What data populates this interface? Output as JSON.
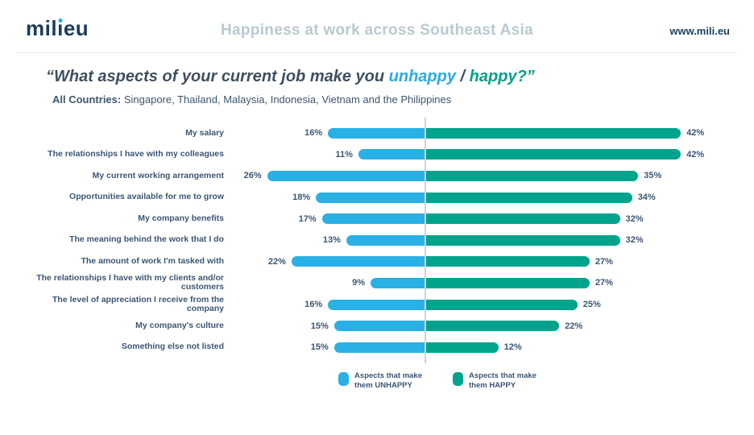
{
  "header": {
    "logo": {
      "full": "milieu",
      "part1": "mil",
      "part2_dotless": "ı",
      "part3": "eu",
      "dot_color": "#29abe2"
    },
    "title": "Happiness at work across Southeast Asia",
    "website": "www.mili.eu"
  },
  "question": {
    "open_quote": "“",
    "prefix": "What aspects of your current job make you ",
    "unhappy_word": "unhappy",
    "separator": " / ",
    "happy_word": "happy",
    "suffix": "?”"
  },
  "subtitle": {
    "bold": "All Countries:",
    "rest": " Singapore, Thailand, Malaysia, Indonesia, Vietnam and the Philippines"
  },
  "chart_data": {
    "type": "bar",
    "variant": "diverging-horizontal",
    "title": "What aspects of your current job make you unhappy / happy?",
    "value_suffix": "%",
    "xlim": [
      -30,
      45
    ],
    "grid": false,
    "legend_position": "bottom-center",
    "categories": [
      "My salary",
      "The relationships I have with my colleagues",
      "My current working arrangement",
      "Opportunities available for me to grow",
      "My company benefits",
      "The meaning behind the work that I do",
      "The amount of work I'm tasked with",
      "The relationships I have with my clients and/or customers",
      "The level of appreciation I receive from the company",
      "My company's culture",
      "Something else not listed"
    ],
    "series": [
      {
        "name": "Aspects that make them UNHAPPY",
        "side": "left",
        "color": "#29b0e4",
        "values": [
          16,
          11,
          26,
          18,
          17,
          13,
          22,
          9,
          16,
          15,
          15
        ]
      },
      {
        "name": "Aspects that make them HAPPY",
        "side": "right",
        "color": "#00a38b",
        "values": [
          42,
          42,
          35,
          34,
          32,
          32,
          27,
          27,
          25,
          22,
          12
        ]
      }
    ],
    "legend": [
      {
        "line1": "Aspects that make",
        "line2": "them UNHAPPY"
      },
      {
        "line1": "Aspects that make",
        "line2": "them HAPPY"
      }
    ]
  },
  "colors": {
    "unhappy_bar": "#29b0e4",
    "happy_bar": "#00a38b",
    "axis_line": "#d2d2d2",
    "title_gray": "#b8cad0",
    "navy": "#1c3e57",
    "text_slate": "#3b5674"
  }
}
